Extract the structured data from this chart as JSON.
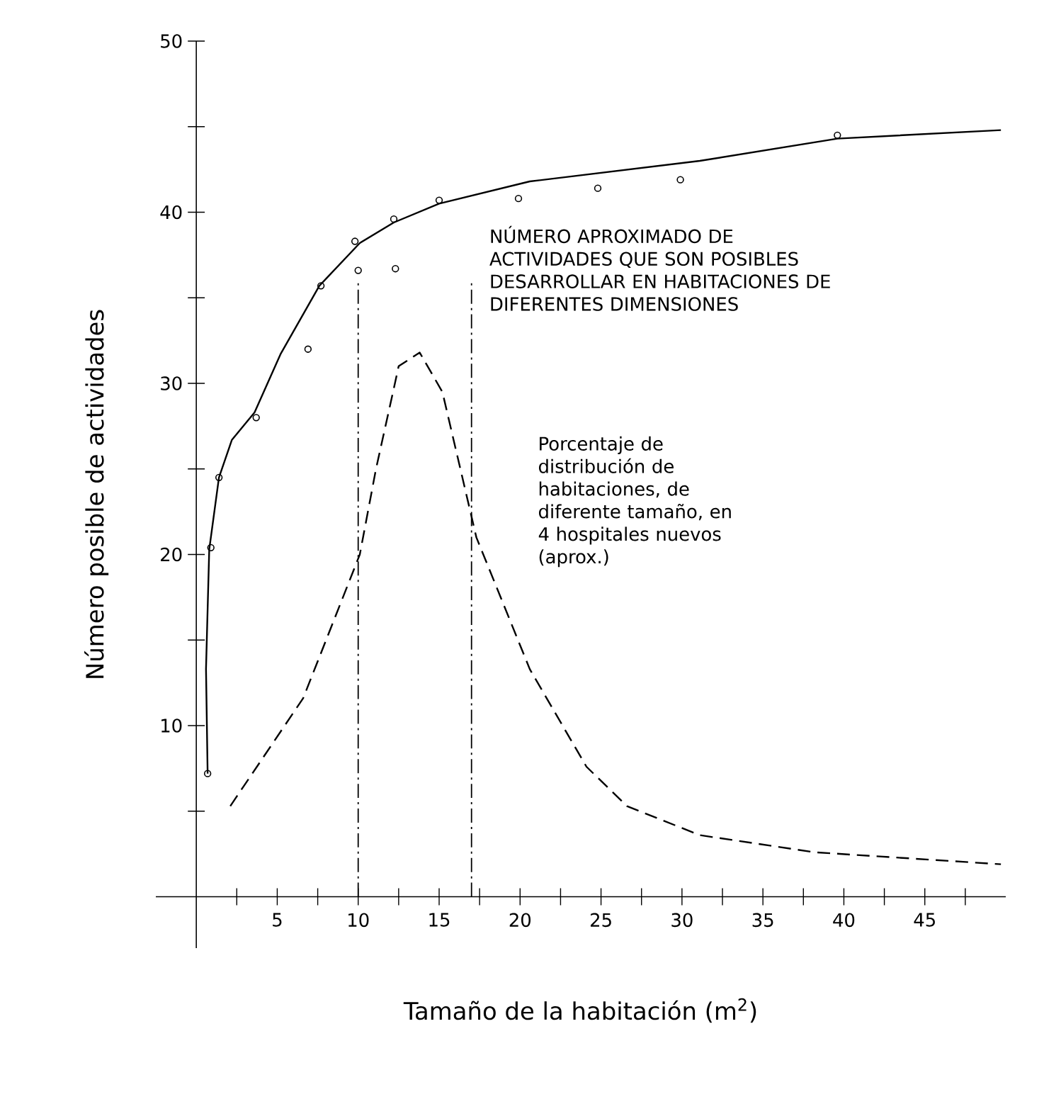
{
  "chart_data": {
    "type": "line",
    "xlabel": "Tamaño de la habitación (m$^{2}$)",
    "ylabel": "Número posible de actividades",
    "xlim": [
      -2.5,
      50
    ],
    "ylim": [
      -3,
      50
    ],
    "xticks": [
      {
        "value": 2.5,
        "label": null
      },
      5,
      {
        "value": 7.5,
        "label": null
      },
      10,
      {
        "value": 12.5,
        "label": null
      },
      15,
      {
        "value": 17.5,
        "label": null
      },
      20,
      {
        "value": 22.5,
        "label": null
      },
      25,
      {
        "value": 27.5,
        "label": null
      },
      30,
      {
        "value": 32.5,
        "label": null
      },
      35,
      {
        "value": 37.5,
        "label": null
      },
      40,
      {
        "value": 42.5,
        "label": null
      },
      45,
      {
        "value": 47.5,
        "label": null
      }
    ],
    "yticks": [
      {
        "value": 5,
        "label": null
      },
      10,
      {
        "value": 15,
        "label": null
      },
      20,
      {
        "value": 25,
        "label": null
      },
      30,
      {
        "value": 35,
        "label": null
      },
      40,
      {
        "value": 45,
        "label": null
      },
      50
    ],
    "annotations": [
      "NÚMERO APROXIMADO DE ACTIVIDADES QUE SON POSIBLES DESARROLLAR EN HABITACIONES DE DIFERENTES DIMENSIONES",
      "Porcentaje de distribución de habitaciones, de diferente tamaño, en 4 hospitales nuevos (aprox.)"
    ],
    "ref_lines": [
      {
        "axis": "x",
        "value": 10,
        "line_style": "dashdot",
        "color": "#000000"
      },
      {
        "axis": "x",
        "value": 17,
        "line_style": "dashdot",
        "color": "#000000"
      }
    ],
    "series": [
      {
        "type": "scatter",
        "marker": "circle",
        "color": "#000000",
        "x": [
          0.7,
          0.9,
          1.4,
          3.7,
          6.9,
          7.7,
          9.8,
          10.0,
          12.2,
          12.3,
          15.0,
          19.9,
          24.8,
          29.9,
          39.6
        ],
        "values": [
          7.2,
          20.4,
          24.5,
          28.0,
          32.0,
          35.7,
          38.3,
          36.6,
          39.6,
          36.7,
          40.7,
          40.8,
          41.4,
          41.9,
          44.5
        ]
      },
      {
        "line_style": "solid",
        "color": "#000000",
        "x": [
          0.7,
          0.6,
          0.8,
          1.4,
          2.2,
          3.6,
          5.2,
          7.6,
          10.1,
          12.2,
          15.0,
          20.6,
          31.1,
          39.6,
          49.7
        ],
        "values": [
          7.2,
          13.3,
          20.3,
          24.5,
          26.7,
          28.3,
          31.7,
          35.7,
          38.2,
          39.4,
          40.5,
          41.8,
          43.0,
          44.3,
          44.8
        ]
      },
      {
        "line_style": "dashed",
        "color": "#000000",
        "x": [
          2.1,
          6.6,
          10.1,
          11.1,
          12.2,
          12.5,
          13.8,
          15.2,
          17.3,
          20.6,
          24.1,
          26.6,
          31.1,
          38.2,
          49.7
        ],
        "values": [
          5.3,
          11.6,
          20.0,
          25.0,
          29.7,
          31.0,
          31.8,
          29.5,
          21.0,
          13.3,
          7.6,
          5.3,
          3.6,
          2.6,
          1.9
        ]
      }
    ]
  }
}
